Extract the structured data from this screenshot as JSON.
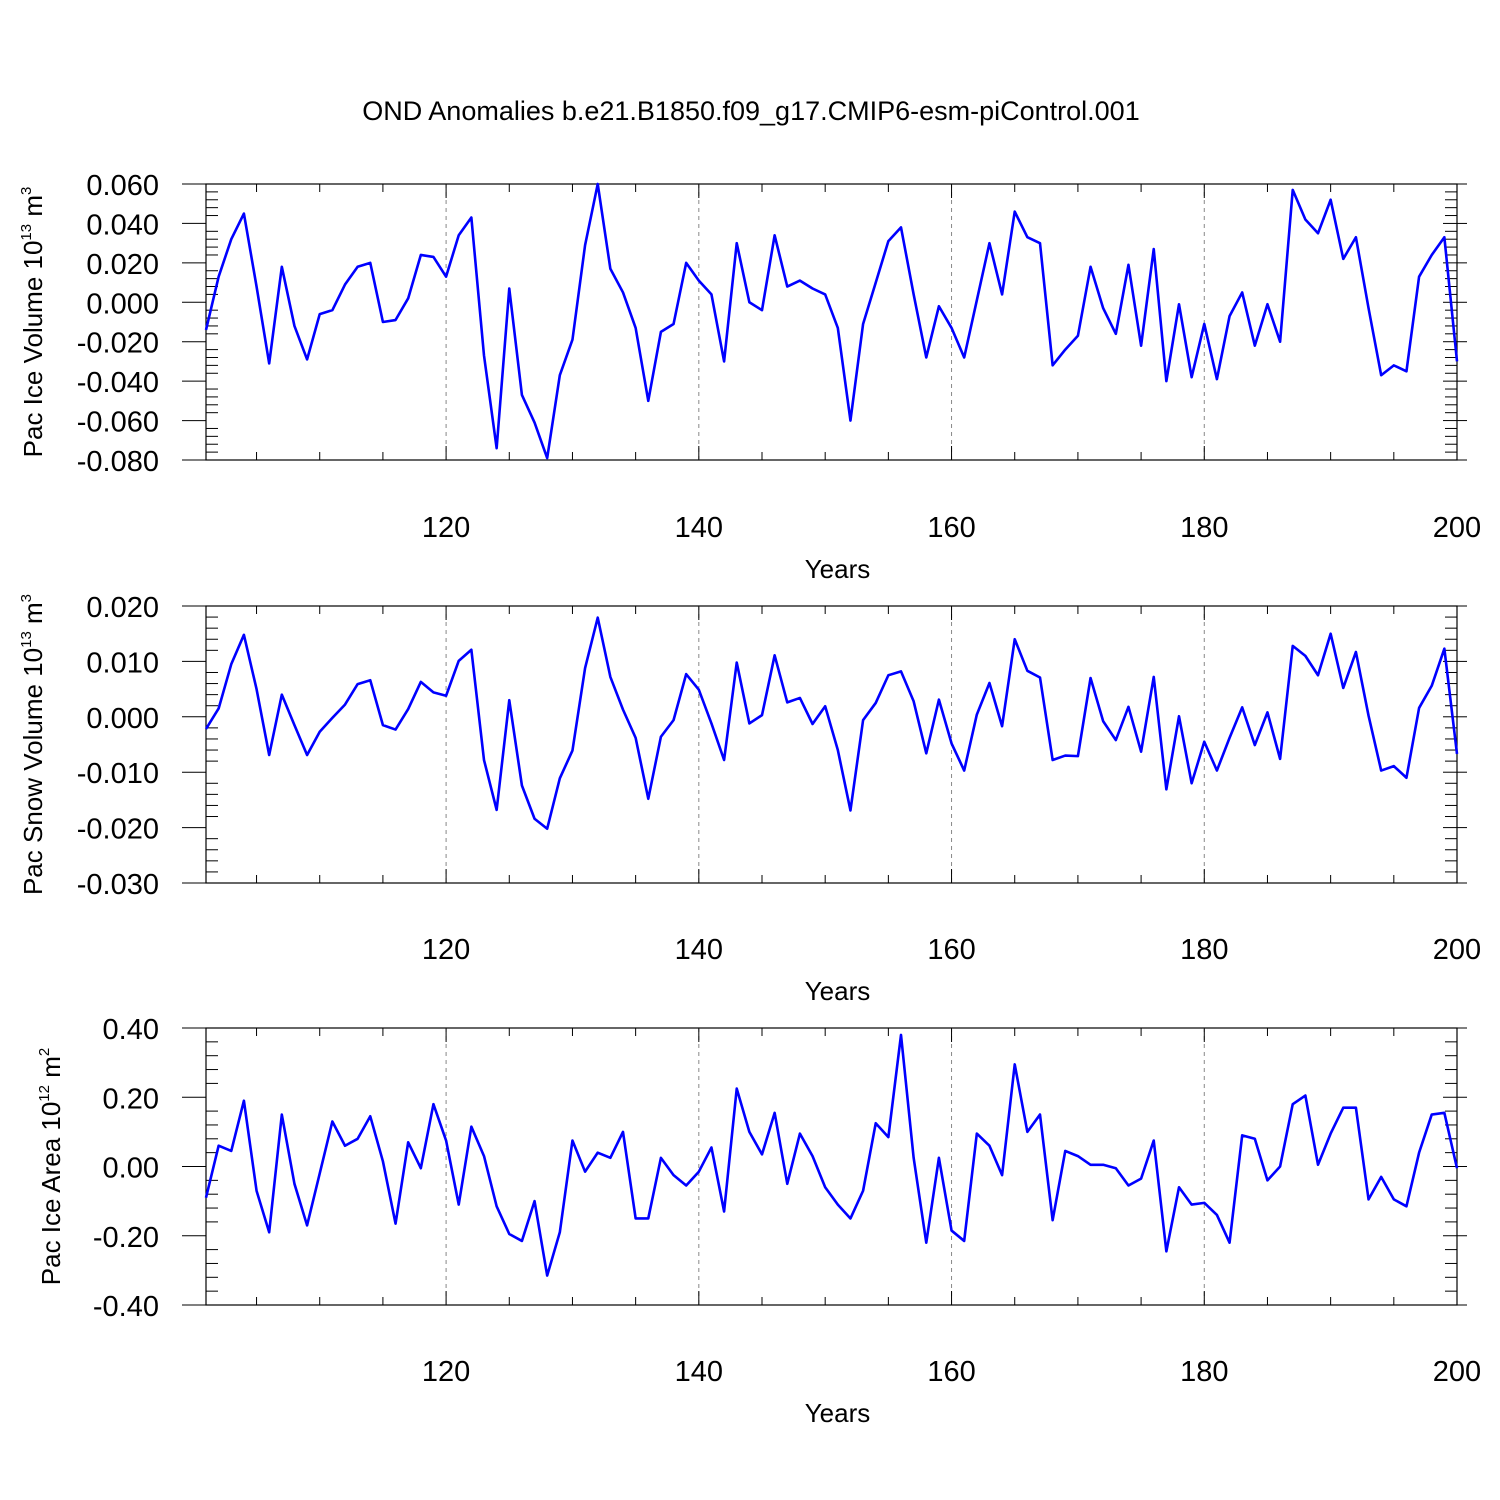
{
  "title": "OND Anomalies b.e21.B1850.f09_g17.CMIP6-esm-piControl.001",
  "line_color": "#0000ff",
  "chart_data": [
    {
      "type": "line",
      "ylabel": {
        "base": "Pac Ice Volume 10",
        "exp": "13",
        "unit": " m",
        "unit_exp": "3"
      },
      "xlabel": "Years",
      "xlim": [
        101,
        200
      ],
      "ylim": [
        -0.08,
        0.06
      ],
      "yticks": [
        0.06,
        0.04,
        0.02,
        0.0,
        -0.02,
        -0.04,
        -0.06,
        -0.08
      ],
      "ytick_labels": [
        "0.060",
        "0.040",
        "0.020",
        "0.000",
        "-0.020",
        "-0.040",
        "-0.060",
        "-0.080"
      ],
      "xticks": [
        120,
        140,
        160,
        180,
        200
      ],
      "xtick_labels": [
        "120",
        "140",
        "160",
        "180",
        "200"
      ],
      "x_start": 101,
      "values": [
        -0.014,
        0.013,
        0.032,
        0.045,
        0.008,
        -0.031,
        0.018,
        -0.012,
        -0.029,
        -0.006,
        -0.004,
        0.009,
        0.018,
        0.02,
        -0.01,
        -0.009,
        0.002,
        0.024,
        0.023,
        0.013,
        0.034,
        0.043,
        -0.027,
        -0.074,
        0.007,
        -0.047,
        -0.061,
        -0.079,
        -0.037,
        -0.019,
        0.029,
        0.06,
        0.017,
        0.005,
        -0.013,
        -0.05,
        -0.015,
        -0.011,
        0.02,
        0.011,
        0.004,
        -0.03,
        0.03,
        0.0,
        -0.004,
        0.034,
        0.008,
        0.011,
        0.007,
        0.004,
        -0.013,
        -0.06,
        -0.011,
        0.01,
        0.031,
        0.038,
        0.004,
        -0.028,
        -0.002,
        -0.013,
        -0.028,
        0.001,
        0.03,
        0.004,
        0.046,
        0.033,
        0.03,
        -0.032,
        -0.024,
        -0.017,
        0.018,
        -0.003,
        -0.016,
        0.019,
        -0.022,
        0.027,
        -0.04,
        -0.001,
        -0.038,
        -0.011,
        -0.039,
        -0.007,
        0.005,
        -0.022,
        -0.001,
        -0.02,
        0.057,
        0.042,
        0.035,
        0.052,
        0.022,
        0.033,
        -0.003,
        -0.037,
        -0.032,
        -0.035,
        0.013,
        0.024,
        0.033,
        -0.03
      ]
    },
    {
      "type": "line",
      "ylabel": {
        "base": "Pac Snow Volume 10",
        "exp": "13",
        "unit": " m",
        "unit_exp": "3"
      },
      "xlabel": "Years",
      "xlim": [
        101,
        200
      ],
      "ylim": [
        -0.03,
        0.02
      ],
      "yticks": [
        0.02,
        0.01,
        0.0,
        -0.01,
        -0.02,
        -0.03
      ],
      "ytick_labels": [
        "0.020",
        "0.010",
        "0.000",
        "-0.010",
        "-0.020",
        "-0.030"
      ],
      "xticks": [
        120,
        140,
        160,
        180,
        200
      ],
      "xtick_labels": [
        "120",
        "140",
        "160",
        "180",
        "200"
      ],
      "x_start": 101,
      "values": [
        -0.0022,
        0.0015,
        0.0095,
        0.0148,
        0.005,
        -0.0069,
        0.004,
        -0.0015,
        -0.0069,
        -0.0027,
        -0.0002,
        0.0022,
        0.0059,
        0.0066,
        -0.0015,
        -0.0023,
        0.0014,
        0.0063,
        0.0044,
        0.0038,
        0.0101,
        0.0121,
        -0.0078,
        -0.0168,
        0.003,
        -0.0124,
        -0.0184,
        -0.0202,
        -0.0111,
        -0.0061,
        0.0088,
        0.0179,
        0.0072,
        0.0013,
        -0.0038,
        -0.0148,
        -0.0036,
        -0.0006,
        0.0077,
        0.0049,
        -0.0012,
        -0.0078,
        0.0098,
        -0.0012,
        0.0003,
        0.0111,
        0.0026,
        0.0034,
        -0.0013,
        0.0019,
        -0.006,
        -0.0169,
        -0.0006,
        0.0025,
        0.0075,
        0.0082,
        0.0028,
        -0.0066,
        0.0031,
        -0.0048,
        -0.0097,
        0.0004,
        0.0061,
        -0.0017,
        0.014,
        0.0083,
        0.0071,
        -0.0078,
        -0.007,
        -0.0071,
        0.007,
        -0.0008,
        -0.0042,
        0.0018,
        -0.0063,
        0.0072,
        -0.0131,
        0.0001,
        -0.012,
        -0.0045,
        -0.0097,
        -0.0038,
        0.0017,
        -0.0051,
        0.0008,
        -0.0076,
        0.0128,
        0.011,
        0.0075,
        0.015,
        0.0052,
        0.0117,
        0.0002,
        -0.0097,
        -0.0089,
        -0.011,
        0.0016,
        0.0056,
        0.0123,
        -0.0067
      ]
    },
    {
      "type": "line",
      "ylabel": {
        "base": "Pac Ice Area 10",
        "exp": "12",
        "unit": " m",
        "unit_exp": "2"
      },
      "xlabel": "Years",
      "xlim": [
        101,
        200
      ],
      "ylim": [
        -0.4,
        0.4
      ],
      "yticks": [
        0.4,
        0.2,
        0.0,
        -0.2,
        -0.4
      ],
      "ytick_labels": [
        "0.40",
        "0.20",
        "0.00",
        "-0.20",
        "-0.40"
      ],
      "xticks": [
        120,
        140,
        160,
        180,
        200
      ],
      "xtick_labels": [
        "120",
        "140",
        "160",
        "180",
        "200"
      ],
      "x_start": 101,
      "values": [
        -0.09,
        0.06,
        0.045,
        0.19,
        -0.07,
        -0.19,
        0.15,
        -0.05,
        -0.17,
        -0.02,
        0.13,
        0.06,
        0.08,
        0.145,
        0.015,
        -0.165,
        0.07,
        -0.005,
        0.18,
        0.075,
        -0.11,
        0.115,
        0.03,
        -0.115,
        -0.195,
        -0.215,
        -0.1,
        -0.315,
        -0.19,
        0.075,
        -0.015,
        0.04,
        0.025,
        0.1,
        -0.15,
        -0.15,
        0.025,
        -0.025,
        -0.055,
        -0.015,
        0.055,
        -0.13,
        0.225,
        0.1,
        0.035,
        0.155,
        -0.05,
        0.095,
        0.03,
        -0.06,
        -0.11,
        -0.15,
        -0.07,
        0.125,
        0.085,
        0.38,
        0.025,
        -0.22,
        0.025,
        -0.185,
        -0.215,
        0.095,
        0.06,
        -0.025,
        0.295,
        0.1,
        0.15,
        -0.155,
        0.045,
        0.03,
        0.005,
        0.005,
        -0.005,
        -0.055,
        -0.035,
        0.075,
        -0.245,
        -0.06,
        -0.11,
        -0.105,
        -0.14,
        -0.22,
        0.09,
        0.08,
        -0.04,
        0.0,
        0.18,
        0.205,
        0.005,
        0.095,
        0.17,
        0.17,
        -0.095,
        -0.03,
        -0.095,
        -0.115,
        0.04,
        0.15,
        0.155,
        -0.005
      ]
    }
  ]
}
